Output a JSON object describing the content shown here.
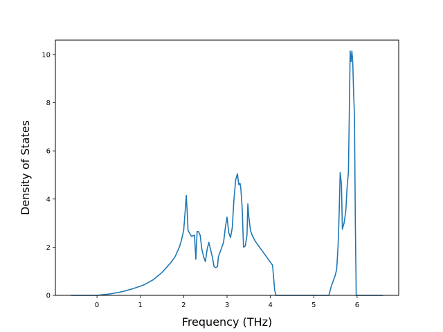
{
  "chart_data": {
    "type": "line",
    "title": "",
    "xlabel": "Frequency (THz)",
    "ylabel": "Density of States",
    "xlim": [
      -0.96,
      6.96
    ],
    "ylim": [
      0,
      10.6
    ],
    "xticks": [
      0,
      1,
      2,
      3,
      4,
      5,
      6
    ],
    "yticks": [
      0,
      2,
      4,
      6,
      8,
      10
    ],
    "grid": false,
    "line_color": "#1f77b4",
    "series": [
      {
        "x": [
          -0.6,
          -0.4,
          -0.2,
          0.0,
          0.1,
          0.2,
          0.3,
          0.4,
          0.5,
          0.6,
          0.7,
          0.8,
          0.9,
          1.0,
          1.1,
          1.2,
          1.3,
          1.4,
          1.5,
          1.6,
          1.7,
          1.8,
          1.85,
          1.9,
          1.95,
          2.0,
          2.03,
          2.06,
          2.08,
          2.1,
          2.13,
          2.18,
          2.25,
          2.28,
          2.31,
          2.34,
          2.38,
          2.42,
          2.46,
          2.5,
          2.54,
          2.58,
          2.62,
          2.66,
          2.7,
          2.74,
          2.78,
          2.8,
          2.84,
          2.88,
          2.92,
          2.96,
          3.0,
          3.04,
          3.08,
          3.12,
          3.16,
          3.2,
          3.24,
          3.27,
          3.3,
          3.32,
          3.35,
          3.38,
          3.42,
          3.46,
          3.48,
          3.5,
          3.54,
          3.58,
          3.65,
          3.75,
          3.85,
          3.95,
          4.05,
          4.1,
          4.13,
          4.16,
          4.2,
          4.4,
          4.8,
          5.2,
          5.35,
          5.4,
          5.45,
          5.5,
          5.53,
          5.56,
          5.58,
          5.61,
          5.64,
          5.66,
          5.7,
          5.74,
          5.77,
          5.8,
          5.82,
          5.84,
          5.86,
          5.88,
          5.9,
          5.92,
          5.94,
          5.96,
          5.98,
          6.0,
          6.02,
          6.1,
          6.3,
          6.6
        ],
        "y": [
          0,
          0,
          0,
          0,
          0.02,
          0.04,
          0.06,
          0.09,
          0.12,
          0.16,
          0.21,
          0.26,
          0.32,
          0.38,
          0.45,
          0.55,
          0.65,
          0.8,
          0.95,
          1.15,
          1.35,
          1.6,
          1.8,
          2.0,
          2.3,
          2.7,
          3.4,
          4.15,
          3.5,
          2.7,
          2.6,
          2.45,
          2.5,
          1.5,
          2.65,
          2.65,
          2.5,
          1.9,
          1.6,
          1.4,
          1.9,
          2.2,
          1.9,
          1.6,
          1.2,
          1.15,
          1.2,
          1.6,
          1.8,
          2.0,
          2.2,
          2.8,
          3.25,
          2.6,
          2.4,
          2.8,
          4.0,
          4.8,
          5.05,
          4.6,
          4.65,
          4.4,
          3.6,
          2.0,
          2.05,
          2.5,
          3.8,
          3.3,
          2.7,
          2.5,
          2.25,
          2.0,
          1.75,
          1.5,
          1.25,
          0.2,
          0,
          0,
          0,
          0,
          0,
          0,
          0,
          0.35,
          0.6,
          0.85,
          1.1,
          2.0,
          3.0,
          5.1,
          4.6,
          2.75,
          3.0,
          3.5,
          4.5,
          5.1,
          7.5,
          10.15,
          9.7,
          10.15,
          9.7,
          8.4,
          7.4,
          3.0,
          0,
          0,
          0,
          0,
          0,
          0
        ]
      }
    ]
  }
}
